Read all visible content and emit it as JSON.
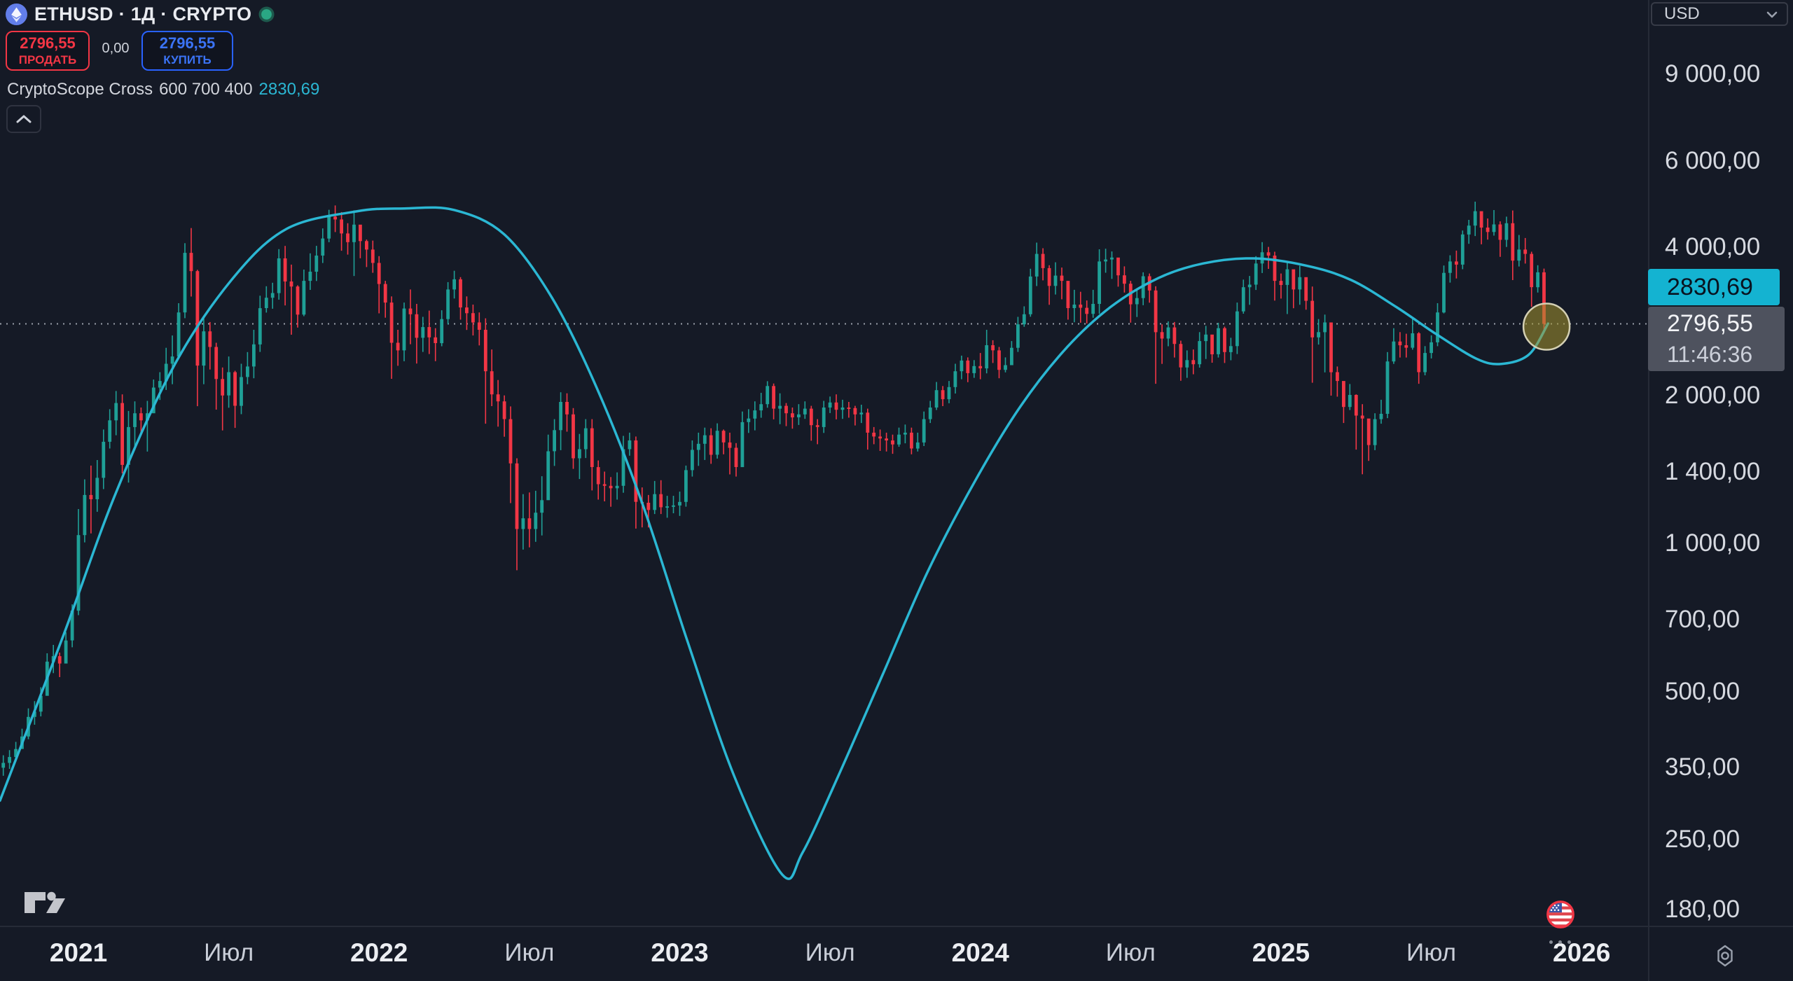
{
  "header": {
    "symbol_title": "ETHUSD · 1Д · CRYPTO",
    "sell": {
      "price": "2796,55",
      "label": "ПРОДАТЬ"
    },
    "spread": "0,00",
    "buy": {
      "price": "2796,55",
      "label": "КУПИТЬ"
    },
    "indicator": {
      "name": "CryptoScope Cross",
      "params": "600 700 400",
      "value": "2830,69"
    }
  },
  "price_scale": {
    "currency": "USD",
    "ticks": [
      {
        "value": 9000,
        "label": "9 000,00"
      },
      {
        "value": 6000,
        "label": "6 000,00"
      },
      {
        "value": 4000,
        "label": "4 000,00"
      },
      {
        "value": 2000,
        "label": "2 000,00"
      },
      {
        "value": 1400,
        "label": "1 400,00"
      },
      {
        "value": 1000,
        "label": "1 000,00"
      },
      {
        "value": 700,
        "label": "700,00"
      },
      {
        "value": 500,
        "label": "500,00"
      },
      {
        "value": 350,
        "label": "350,00"
      },
      {
        "value": 250,
        "label": "250,00"
      },
      {
        "value": 180,
        "label": "180,00"
      }
    ],
    "indicator_badge": {
      "value": "2830,69",
      "color": "#14b3d1"
    },
    "price_badge": {
      "price": "2796,55",
      "countdown": "11:46:36"
    }
  },
  "time_scale": {
    "labels": [
      {
        "text": "2021",
        "month": 0,
        "major": true
      },
      {
        "text": "Июл",
        "month": 6,
        "major": false
      },
      {
        "text": "2022",
        "month": 12,
        "major": true
      },
      {
        "text": "Июл",
        "month": 18,
        "major": false
      },
      {
        "text": "2023",
        "month": 24,
        "major": true
      },
      {
        "text": "Июл",
        "month": 30,
        "major": false
      },
      {
        "text": "2024",
        "month": 36,
        "major": true
      },
      {
        "text": "Июл",
        "month": 42,
        "major": false
      },
      {
        "text": "2025",
        "month": 48,
        "major": true
      },
      {
        "text": "Июл",
        "month": 54,
        "major": false
      },
      {
        "text": "2026",
        "month": 60,
        "major": true
      }
    ]
  },
  "chart_data": {
    "type": "candlestick",
    "symbol": "ETHUSD",
    "interval": "1Д",
    "exchange": "CRYPTO",
    "scale": "log",
    "currency": "USD",
    "ylim": [
      167,
      12700
    ],
    "y_ticks": [
      9000,
      6000,
      4000,
      2000,
      1400,
      1000,
      700,
      500,
      350,
      250,
      180
    ],
    "x_range_months_from_jan2021": [
      -3.1,
      62.7
    ],
    "start_month": "2020-10",
    "points_per_month": 4,
    "first_open": 350,
    "current_price": 2796.55,
    "countdown": "11:46:36",
    "up_color": "#1fa097",
    "down_color": "#f23645",
    "candles_clh": [
      [
        358,
        337,
        371
      ],
      [
        368,
        348,
        380
      ],
      [
        382,
        360,
        395
      ],
      [
        405,
        382,
        420
      ],
      [
        444,
        400,
        462
      ],
      [
        455,
        428,
        478
      ],
      [
        490,
        445,
        510
      ],
      [
        575,
        520,
        598
      ],
      [
        590,
        545,
        622
      ],
      [
        570,
        535,
        600
      ],
      [
        635,
        585,
        660
      ],
      [
        730,
        615,
        752
      ],
      [
        1040,
        715,
        1175
      ],
      [
        1255,
        1005,
        1350
      ],
      [
        1230,
        1048,
        1440
      ],
      [
        1360,
        1160,
        1478
      ],
      [
        1610,
        1290,
        1705
      ],
      [
        1780,
        1560,
        1875
      ],
      [
        1930,
        1660,
        2042
      ],
      [
        1445,
        1388,
        2010
      ],
      [
        1725,
        1330,
        1860
      ],
      [
        1840,
        1548,
        1945
      ],
      [
        1780,
        1665,
        1890
      ],
      [
        1840,
        1538,
        1950
      ],
      [
        2075,
        1928,
        2155
      ],
      [
        2140,
        1958,
        2230
      ],
      [
        2320,
        2052,
        2500
      ],
      [
        2400,
        2108,
        2648
      ],
      [
        2950,
        2372,
        3080
      ],
      [
        3900,
        2872,
        4080
      ],
      [
        3580,
        3178,
        4380
      ],
      [
        2300,
        1902,
        3602
      ],
      [
        2700,
        2108,
        2900
      ],
      [
        2510,
        2258,
        2820
      ],
      [
        2160,
        1872,
        2560
      ],
      [
        2000,
        1698,
        2280
      ],
      [
        2230,
        1888,
        2400
      ],
      [
        1905,
        1718,
        2245
      ],
      [
        2180,
        1832,
        2320
      ],
      [
        2290,
        2108,
        2450
      ],
      [
        2540,
        2168,
        2720
      ],
      [
        3010,
        2452,
        3190
      ],
      [
        3160,
        2948,
        3335
      ],
      [
        3230,
        3002,
        3390
      ],
      [
        3800,
        3132,
        3968
      ],
      [
        3410,
        3048,
        4028
      ],
      [
        3330,
        2658,
        3690
      ],
      [
        2920,
        2748,
        3350
      ],
      [
        3420,
        2898,
        3605
      ],
      [
        3570,
        3278,
        3890
      ],
      [
        3850,
        3418,
        4030
      ],
      [
        4170,
        3718,
        4372
      ],
      [
        4620,
        4098,
        4770
      ],
      [
        4560,
        4298,
        4868
      ],
      [
        4270,
        3938,
        4720
      ],
      [
        4100,
        3868,
        4480
      ],
      [
        4450,
        3498,
        4758
      ],
      [
        4120,
        3802,
        4440
      ],
      [
        3960,
        3648,
        4150
      ],
      [
        3720,
        3552,
        4130
      ],
      [
        3370,
        2938,
        3840
      ],
      [
        3090,
        2878,
        3420
      ],
      [
        2560,
        2162,
        3180
      ],
      [
        2470,
        2298,
        2720
      ],
      [
        3005,
        2348,
        3090
      ],
      [
        2925,
        2542,
        3285
      ],
      [
        2620,
        2322,
        3070
      ],
      [
        2755,
        2452,
        2890
      ],
      [
        2625,
        2428,
        2975
      ],
      [
        2555,
        2348,
        2740
      ],
      [
        2860,
        2518,
        2980
      ],
      [
        3285,
        2788,
        3400
      ],
      [
        3445,
        3148,
        3585
      ],
      [
        3020,
        2852,
        3480
      ],
      [
        2940,
        2718,
        3180
      ],
      [
        2815,
        2648,
        3060
      ],
      [
        2720,
        2528,
        2950
      ],
      [
        2240,
        1752,
        2870
      ],
      [
        2010,
        1902,
        2480
      ],
      [
        1945,
        1728,
        2150
      ],
      [
        1790,
        1648,
        2000
      ],
      [
        1455,
        1208,
        1900
      ],
      [
        1070,
        882,
        1490
      ],
      [
        1125,
        972,
        1260
      ],
      [
        1070,
        982,
        1270
      ],
      [
        1155,
        1008,
        1280
      ],
      [
        1225,
        1038,
        1370
      ],
      [
        1540,
        1288,
        1665
      ],
      [
        1700,
        1438,
        1790
      ],
      [
        1940,
        1548,
        2030
      ],
      [
        1830,
        1688,
        2020
      ],
      [
        1490,
        1418,
        1885
      ],
      [
        1555,
        1352,
        1670
      ],
      [
        1715,
        1492,
        1790
      ],
      [
        1430,
        1282,
        1790
      ],
      [
        1320,
        1228,
        1475
      ],
      [
        1310,
        1218,
        1400
      ],
      [
        1295,
        1188,
        1365
      ],
      [
        1310,
        1228,
        1395
      ],
      [
        1555,
        1268,
        1655
      ],
      [
        1620,
        1508,
        1680
      ],
      [
        1215,
        1072,
        1650
      ],
      [
        1210,
        1078,
        1300
      ],
      [
        1170,
        1078,
        1255
      ],
      [
        1260,
        1148,
        1340
      ],
      [
        1185,
        1148,
        1345
      ],
      [
        1190,
        1128,
        1250
      ],
      [
        1195,
        1152,
        1250
      ],
      [
        1215,
        1138,
        1275
      ],
      [
        1410,
        1188,
        1440
      ],
      [
        1550,
        1368,
        1620
      ],
      [
        1595,
        1438,
        1680
      ],
      [
        1660,
        1478,
        1720
      ],
      [
        1515,
        1452,
        1715
      ],
      [
        1695,
        1488,
        1755
      ],
      [
        1605,
        1518,
        1705
      ],
      [
        1565,
        1382,
        1680
      ],
      [
        1430,
        1368,
        1600
      ],
      [
        1765,
        1442,
        1855
      ],
      [
        1795,
        1678,
        1875
      ],
      [
        1865,
        1698,
        1945
      ],
      [
        1920,
        1802,
        2025
      ],
      [
        2090,
        1888,
        2138
      ],
      [
        1880,
        1788,
        2115
      ],
      [
        1905,
        1748,
        2020
      ],
      [
        1840,
        1732,
        1930
      ],
      [
        1805,
        1712,
        1890
      ],
      [
        1830,
        1742,
        1920
      ],
      [
        1880,
        1792,
        1945
      ],
      [
        1740,
        1618,
        1905
      ],
      [
        1725,
        1592,
        1790
      ],
      [
        1890,
        1678,
        1950
      ],
      [
        1935,
        1842,
        1990
      ],
      [
        1870,
        1788,
        2010
      ],
      [
        1890,
        1792,
        1960
      ],
      [
        1885,
        1802,
        1940
      ],
      [
        1830,
        1738,
        1905
      ],
      [
        1845,
        1758,
        1915
      ],
      [
        1680,
        1552,
        1880
      ],
      [
        1650,
        1592,
        1725
      ],
      [
        1635,
        1542,
        1705
      ],
      [
        1620,
        1538,
        1680
      ],
      [
        1590,
        1522,
        1665
      ],
      [
        1665,
        1572,
        1720
      ],
      [
        1680,
        1598,
        1745
      ],
      [
        1560,
        1518,
        1720
      ],
      [
        1605,
        1538,
        1680
      ],
      [
        1790,
        1578,
        1855
      ],
      [
        1890,
        1758,
        1950
      ],
      [
        2050,
        1868,
        2130
      ],
      [
        1965,
        1902,
        2090
      ],
      [
        2080,
        1928,
        2140
      ],
      [
        2240,
        2018,
        2320
      ],
      [
        2355,
        2158,
        2410
      ],
      [
        2220,
        2128,
        2390
      ],
      [
        2295,
        2172,
        2360
      ],
      [
        2270,
        2158,
        2440
      ],
      [
        2530,
        2218,
        2720
      ],
      [
        2470,
        2328,
        2590
      ],
      [
        2255,
        2168,
        2510
      ],
      [
        2305,
        2228,
        2390
      ],
      [
        2500,
        2328,
        2580
      ],
      [
        2790,
        2452,
        2890
      ],
      [
        2925,
        2758,
        3035
      ],
      [
        3490,
        2892,
        3620
      ],
      [
        3880,
        3338,
        4090
      ],
      [
        3630,
        3428,
        3985
      ],
      [
        3340,
        3058,
        3680
      ],
      [
        3505,
        3208,
        3730
      ],
      [
        3420,
        3138,
        3640
      ],
      [
        3010,
        2852,
        3320
      ],
      [
        3060,
        2818,
        3280
      ],
      [
        3015,
        2812,
        3250
      ],
      [
        2930,
        2802,
        3120
      ],
      [
        3070,
        2878,
        3280
      ],
      [
        3745,
        2932,
        3965
      ],
      [
        3780,
        3552,
        3975
      ],
      [
        3815,
        3452,
        3925
      ],
      [
        3510,
        3328,
        3690
      ],
      [
        3375,
        3238,
        3660
      ],
      [
        3065,
        2812,
        3420
      ],
      [
        3155,
        2888,
        3275
      ],
      [
        3495,
        3052,
        3560
      ],
      [
        3270,
        3088,
        3540
      ],
      [
        2690,
        2112,
        3335
      ],
      [
        2610,
        2318,
        2790
      ],
      [
        2750,
        2518,
        2830
      ],
      [
        2545,
        2388,
        2820
      ],
      [
        2280,
        2142,
        2585
      ],
      [
        2360,
        2172,
        2470
      ],
      [
        2315,
        2208,
        2480
      ],
      [
        2580,
        2278,
        2690
      ],
      [
        2660,
        2372,
        2770
      ],
      [
        2425,
        2332,
        2560
      ],
      [
        2740,
        2388,
        2810
      ],
      [
        2450,
        2328,
        2760
      ],
      [
        2520,
        2358,
        2620
      ],
      [
        2965,
        2428,
        3090
      ],
      [
        3320,
        2932,
        3440
      ],
      [
        3360,
        3058,
        3500
      ],
      [
        3710,
        3278,
        3840
      ],
      [
        3910,
        3548,
        4100
      ],
      [
        3850,
        3618,
        4010
      ],
      [
        3420,
        3118,
        3920
      ],
      [
        3355,
        3148,
        3540
      ],
      [
        3610,
        2928,
        3740
      ],
      [
        3285,
        3008,
        3450
      ],
      [
        3480,
        3058,
        3670
      ],
      [
        3115,
        2988,
        3430
      ],
      [
        2625,
        2122,
        3330
      ],
      [
        2690,
        2538,
        2860
      ],
      [
        2815,
        2228,
        2920
      ],
      [
        2230,
        1998,
        2550
      ],
      [
        2140,
        1988,
        2290
      ],
      [
        1895,
        1758,
        2100
      ],
      [
        2005,
        1868,
        2110
      ],
      [
        1820,
        1552,
        2010
      ],
      [
        1795,
        1383,
        1920
      ],
      [
        1585,
        1472,
        1690
      ],
      [
        1790,
        1548,
        1840
      ],
      [
        1835,
        1752,
        1960
      ],
      [
        2345,
        1798,
        2450
      ],
      [
        2575,
        2318,
        2740
      ],
      [
        2530,
        2388,
        2690
      ],
      [
        2500,
        2388,
        2670
      ],
      [
        2675,
        2478,
        2880
      ],
      [
        2230,
        2112,
        2690
      ],
      [
        2440,
        2198,
        2520
      ],
      [
        2565,
        2378,
        2650
      ],
      [
        2950,
        2518,
        3080
      ],
      [
        3550,
        2938,
        3675
      ],
      [
        3745,
        3392,
        3855
      ],
      [
        3690,
        3458,
        3940
      ],
      [
        4250,
        3612,
        4330
      ],
      [
        4430,
        4068,
        4550
      ],
      [
        4740,
        4218,
        4955
      ],
      [
        4390,
        4058,
        4650
      ],
      [
        4300,
        4148,
        4580
      ],
      [
        4455,
        4228,
        4765
      ],
      [
        4145,
        3828,
        4520
      ],
      [
        4480,
        4008,
        4620
      ],
      [
        3760,
        3432,
        4755
      ],
      [
        3960,
        3658,
        4240
      ],
      [
        3880,
        3708,
        4180
      ],
      [
        3320,
        3028,
        3920
      ],
      [
        3560,
        3238,
        3680
      ],
      [
        2797,
        2708,
        3622
      ]
    ],
    "indicator_line": {
      "name": "CryptoScope Cross",
      "params": [
        600,
        700,
        400
      ],
      "last_value": 2830.69,
      "color": "#2bb7d3",
      "points_mp": [
        [
          -3.13,
          300
        ],
        [
          -0.6,
          650
        ],
        [
          1.5,
          1270
        ],
        [
          3.8,
          2290
        ],
        [
          6.1,
          3430
        ],
        [
          8.3,
          4360
        ],
        [
          11.1,
          4735
        ],
        [
          13,
          4800
        ],
        [
          15,
          4766
        ],
        [
          17,
          4250
        ],
        [
          18.9,
          3160
        ],
        [
          20.7,
          2066
        ],
        [
          22.5,
          1209
        ],
        [
          24.3,
          635
        ],
        [
          26.2,
          334
        ],
        [
          28.1,
          212
        ],
        [
          28.9,
          235
        ],
        [
          30.3,
          334
        ],
        [
          32.1,
          541
        ],
        [
          33.9,
          877
        ],
        [
          35.8,
          1343
        ],
        [
          37.6,
          1900
        ],
        [
          39.4,
          2487
        ],
        [
          41.2,
          3026
        ],
        [
          43.1,
          3464
        ],
        [
          44.9,
          3711
        ],
        [
          46.9,
          3800
        ],
        [
          49,
          3674
        ],
        [
          50.8,
          3434
        ],
        [
          52.6,
          3026
        ],
        [
          54.2,
          2665
        ],
        [
          55.8,
          2375
        ],
        [
          56.8,
          2318
        ],
        [
          57.9,
          2423
        ],
        [
          58.66,
          2800
        ]
      ]
    },
    "marker_circle": {
      "month": 58.6,
      "price": 2760,
      "radius_px": 33,
      "fill": "rgba(166,150,45,0.55)",
      "stroke": "#d4d0b4"
    }
  }
}
